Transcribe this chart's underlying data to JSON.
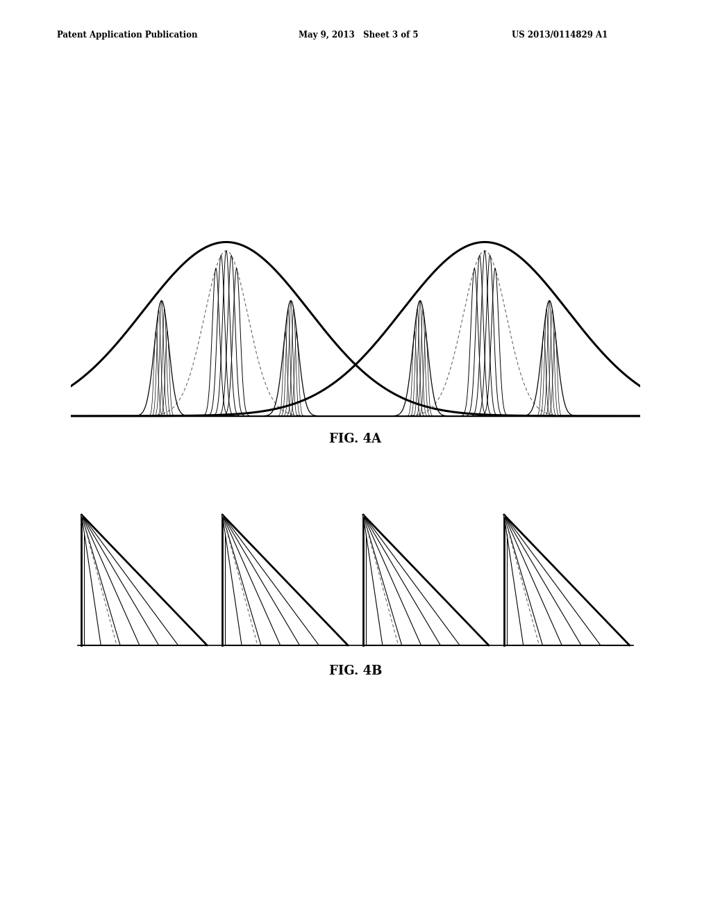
{
  "header_left": "Patent Application Publication",
  "header_mid": "May 9, 2013   Sheet 3 of 5",
  "header_right": "US 2013/0114829 A1",
  "fig4a_label": "FIG. 4A",
  "fig4b_label": "FIG. 4B",
  "background_color": "#ffffff",
  "line_color": "#000000",
  "dashed_color": "#666666"
}
